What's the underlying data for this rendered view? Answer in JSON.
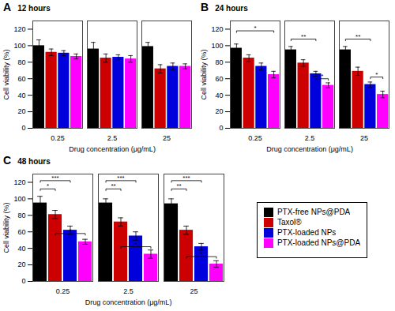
{
  "chart_data": [
    {
      "type": "bar",
      "panel_label": "A",
      "title": "12 hours",
      "xlabel": "Drug concentration (μg/mL)",
      "ylabel": "Cell viability (%)",
      "categories": [
        "0.25",
        "2.5",
        "25"
      ],
      "series": [
        {
          "name": "PTX-free NPs@PDA",
          "color": "black",
          "values": [
            100,
            96,
            99
          ],
          "errors": [
            7,
            8,
            5
          ]
        },
        {
          "name": "Taxol®",
          "color": "#cc0000",
          "values": [
            92,
            85,
            72
          ],
          "errors": [
            4,
            5,
            5
          ]
        },
        {
          "name": "PTX-loaded NPs",
          "color": "#0000dd",
          "values": [
            91,
            86,
            75
          ],
          "errors": [
            3,
            3,
            4
          ]
        },
        {
          "name": "PTX-loaded NPs@PDA",
          "color": "#ff00ff",
          "values": [
            87,
            84,
            75
          ],
          "errors": [
            3,
            4,
            3
          ]
        }
      ],
      "ylim": [
        0,
        130
      ],
      "yticks": [
        0,
        20,
        40,
        60,
        80,
        100,
        120
      ],
      "annotations": []
    },
    {
      "type": "bar",
      "panel_label": "B",
      "title": "24 hours",
      "xlabel": "Drug concentration (μg/mL)",
      "ylabel": "Cell viability (%)",
      "categories": [
        "0.25",
        "2.5",
        "25"
      ],
      "series": [
        {
          "name": "PTX-free NPs@PDA",
          "color": "black",
          "values": [
            97,
            95,
            95
          ],
          "errors": [
            5,
            4,
            4
          ]
        },
        {
          "name": "Taxol®",
          "color": "#cc0000",
          "values": [
            85,
            79,
            69
          ],
          "errors": [
            4,
            4,
            5
          ]
        },
        {
          "name": "PTX-loaded NPs",
          "color": "#0000dd",
          "values": [
            75,
            66,
            53
          ],
          "errors": [
            4,
            3,
            3
          ]
        },
        {
          "name": "PTX-loaded NPs@PDA",
          "color": "#ff00ff",
          "values": [
            65,
            52,
            41
          ],
          "errors": [
            4,
            3,
            4
          ]
        }
      ],
      "ylim": [
        0,
        130
      ],
      "yticks": [
        0,
        20,
        40,
        60,
        80,
        100,
        120
      ],
      "annotations": [
        {
          "text": "*",
          "y": 118,
          "category": "0.25",
          "from": "PTX-free NPs@PDA",
          "to": "PTX-loaded NPs@PDA"
        },
        {
          "text": "**",
          "y": 108,
          "category": "2.5",
          "from": "PTX-free NPs@PDA",
          "to": "PTX-loaded NPs"
        },
        {
          "text": "*",
          "y": 60,
          "category": "2.5",
          "from": "PTX-loaded NPs",
          "to": "PTX-loaded NPs@PDA"
        },
        {
          "text": "**",
          "y": 108,
          "category": "25",
          "from": "PTX-free NPs@PDA",
          "to": "PTX-loaded NPs"
        },
        {
          "text": "*",
          "y": 62,
          "category": "25",
          "from": "PTX-loaded NPs",
          "to": "PTX-loaded NPs@PDA"
        }
      ]
    },
    {
      "type": "bar",
      "panel_label": "C",
      "title": "48 hours",
      "xlabel": "Drug concentration (μg/mL)",
      "ylabel": "Cell viability (%)",
      "categories": [
        "0.25",
        "2.5",
        "25"
      ],
      "series": [
        {
          "name": "PTX-free NPs@PDA",
          "color": "black",
          "values": [
            95,
            95,
            94
          ],
          "errors": [
            8,
            5,
            6
          ]
        },
        {
          "name": "Taxol®",
          "color": "#cc0000",
          "values": [
            81,
            72,
            62
          ],
          "errors": [
            5,
            5,
            5
          ]
        },
        {
          "name": "PTX-loaded NPs",
          "color": "#0000dd",
          "values": [
            62,
            55,
            42
          ],
          "errors": [
            5,
            5,
            4
          ]
        },
        {
          "name": "PTX-loaded NPs@PDA",
          "color": "#ff00ff",
          "values": [
            48,
            33,
            21
          ],
          "errors": [
            3,
            5,
            4
          ]
        }
      ],
      "ylim": [
        0,
        130
      ],
      "yticks": [
        0,
        20,
        40,
        60,
        80,
        100,
        120
      ],
      "legend": "lower right",
      "annotations": [
        {
          "text": "***",
          "y": 122,
          "category": "0.25",
          "from": "PTX-free NPs@PDA",
          "to": "PTX-loaded NPs"
        },
        {
          "text": "*",
          "y": 112,
          "category": "0.25",
          "from": "PTX-free NPs@PDA",
          "to": "Taxol®"
        },
        {
          "text": "*",
          "y": 58,
          "category": "0.25",
          "from": "Taxol®",
          "to": "PTX-loaded NPs@PDA"
        },
        {
          "text": "***",
          "y": 122,
          "category": "2.5",
          "from": "PTX-free NPs@PDA",
          "to": "PTX-loaded NPs"
        },
        {
          "text": "**",
          "y": 112,
          "category": "2.5",
          "from": "PTX-free NPs@PDA",
          "to": "Taxol®"
        },
        {
          "text": "*",
          "y": 42,
          "category": "2.5",
          "from": "Taxol®",
          "to": "PTX-loaded NPs@PDA"
        },
        {
          "text": "***",
          "y": 122,
          "category": "25",
          "from": "PTX-free NPs@PDA",
          "to": "PTX-loaded NPs"
        },
        {
          "text": "**",
          "y": 112,
          "category": "25",
          "from": "PTX-free NPs@PDA",
          "to": "Taxol®"
        },
        {
          "text": "*",
          "y": 30,
          "category": "25",
          "from": "Taxol®",
          "to": "PTX-loaded NPs@PDA"
        }
      ]
    }
  ]
}
